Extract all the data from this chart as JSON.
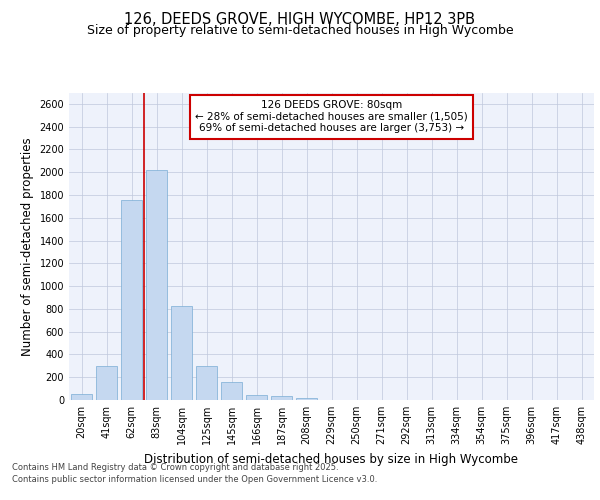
{
  "title_line1": "126, DEEDS GROVE, HIGH WYCOMBE, HP12 3PB",
  "title_line2": "Size of property relative to semi-detached houses in High Wycombe",
  "xlabel": "Distribution of semi-detached houses by size in High Wycombe",
  "ylabel": "Number of semi-detached properties",
  "categories": [
    "20sqm",
    "41sqm",
    "62sqm",
    "83sqm",
    "104sqm",
    "125sqm",
    "145sqm",
    "166sqm",
    "187sqm",
    "208sqm",
    "229sqm",
    "250sqm",
    "271sqm",
    "292sqm",
    "313sqm",
    "334sqm",
    "354sqm",
    "375sqm",
    "396sqm",
    "417sqm",
    "438sqm"
  ],
  "values": [
    55,
    300,
    1760,
    2020,
    825,
    295,
    160,
    45,
    35,
    20,
    0,
    0,
    0,
    0,
    0,
    0,
    0,
    0,
    0,
    0,
    0
  ],
  "bar_color": "#c5d8f0",
  "bar_edge_color": "#7aadd4",
  "vline_color": "#cc0000",
  "vline_x_index": 3,
  "annotation_text": "126 DEEDS GROVE: 80sqm\n← 28% of semi-detached houses are smaller (1,505)\n69% of semi-detached houses are larger (3,753) →",
  "annotation_box_facecolor": "#ffffff",
  "annotation_box_edgecolor": "#cc0000",
  "ylim": [
    0,
    2700
  ],
  "yticks": [
    0,
    200,
    400,
    600,
    800,
    1000,
    1200,
    1400,
    1600,
    1800,
    2000,
    2200,
    2400,
    2600
  ],
  "bg_color": "#eef2fb",
  "grid_color": "#c0c8dc",
  "footer_line1": "Contains HM Land Registry data © Crown copyright and database right 2025.",
  "footer_line2": "Contains public sector information licensed under the Open Government Licence v3.0.",
  "title_fontsize": 10.5,
  "subtitle_fontsize": 9,
  "axis_label_fontsize": 8.5,
  "tick_fontsize": 7,
  "annotation_fontsize": 7.5,
  "footer_fontsize": 6
}
